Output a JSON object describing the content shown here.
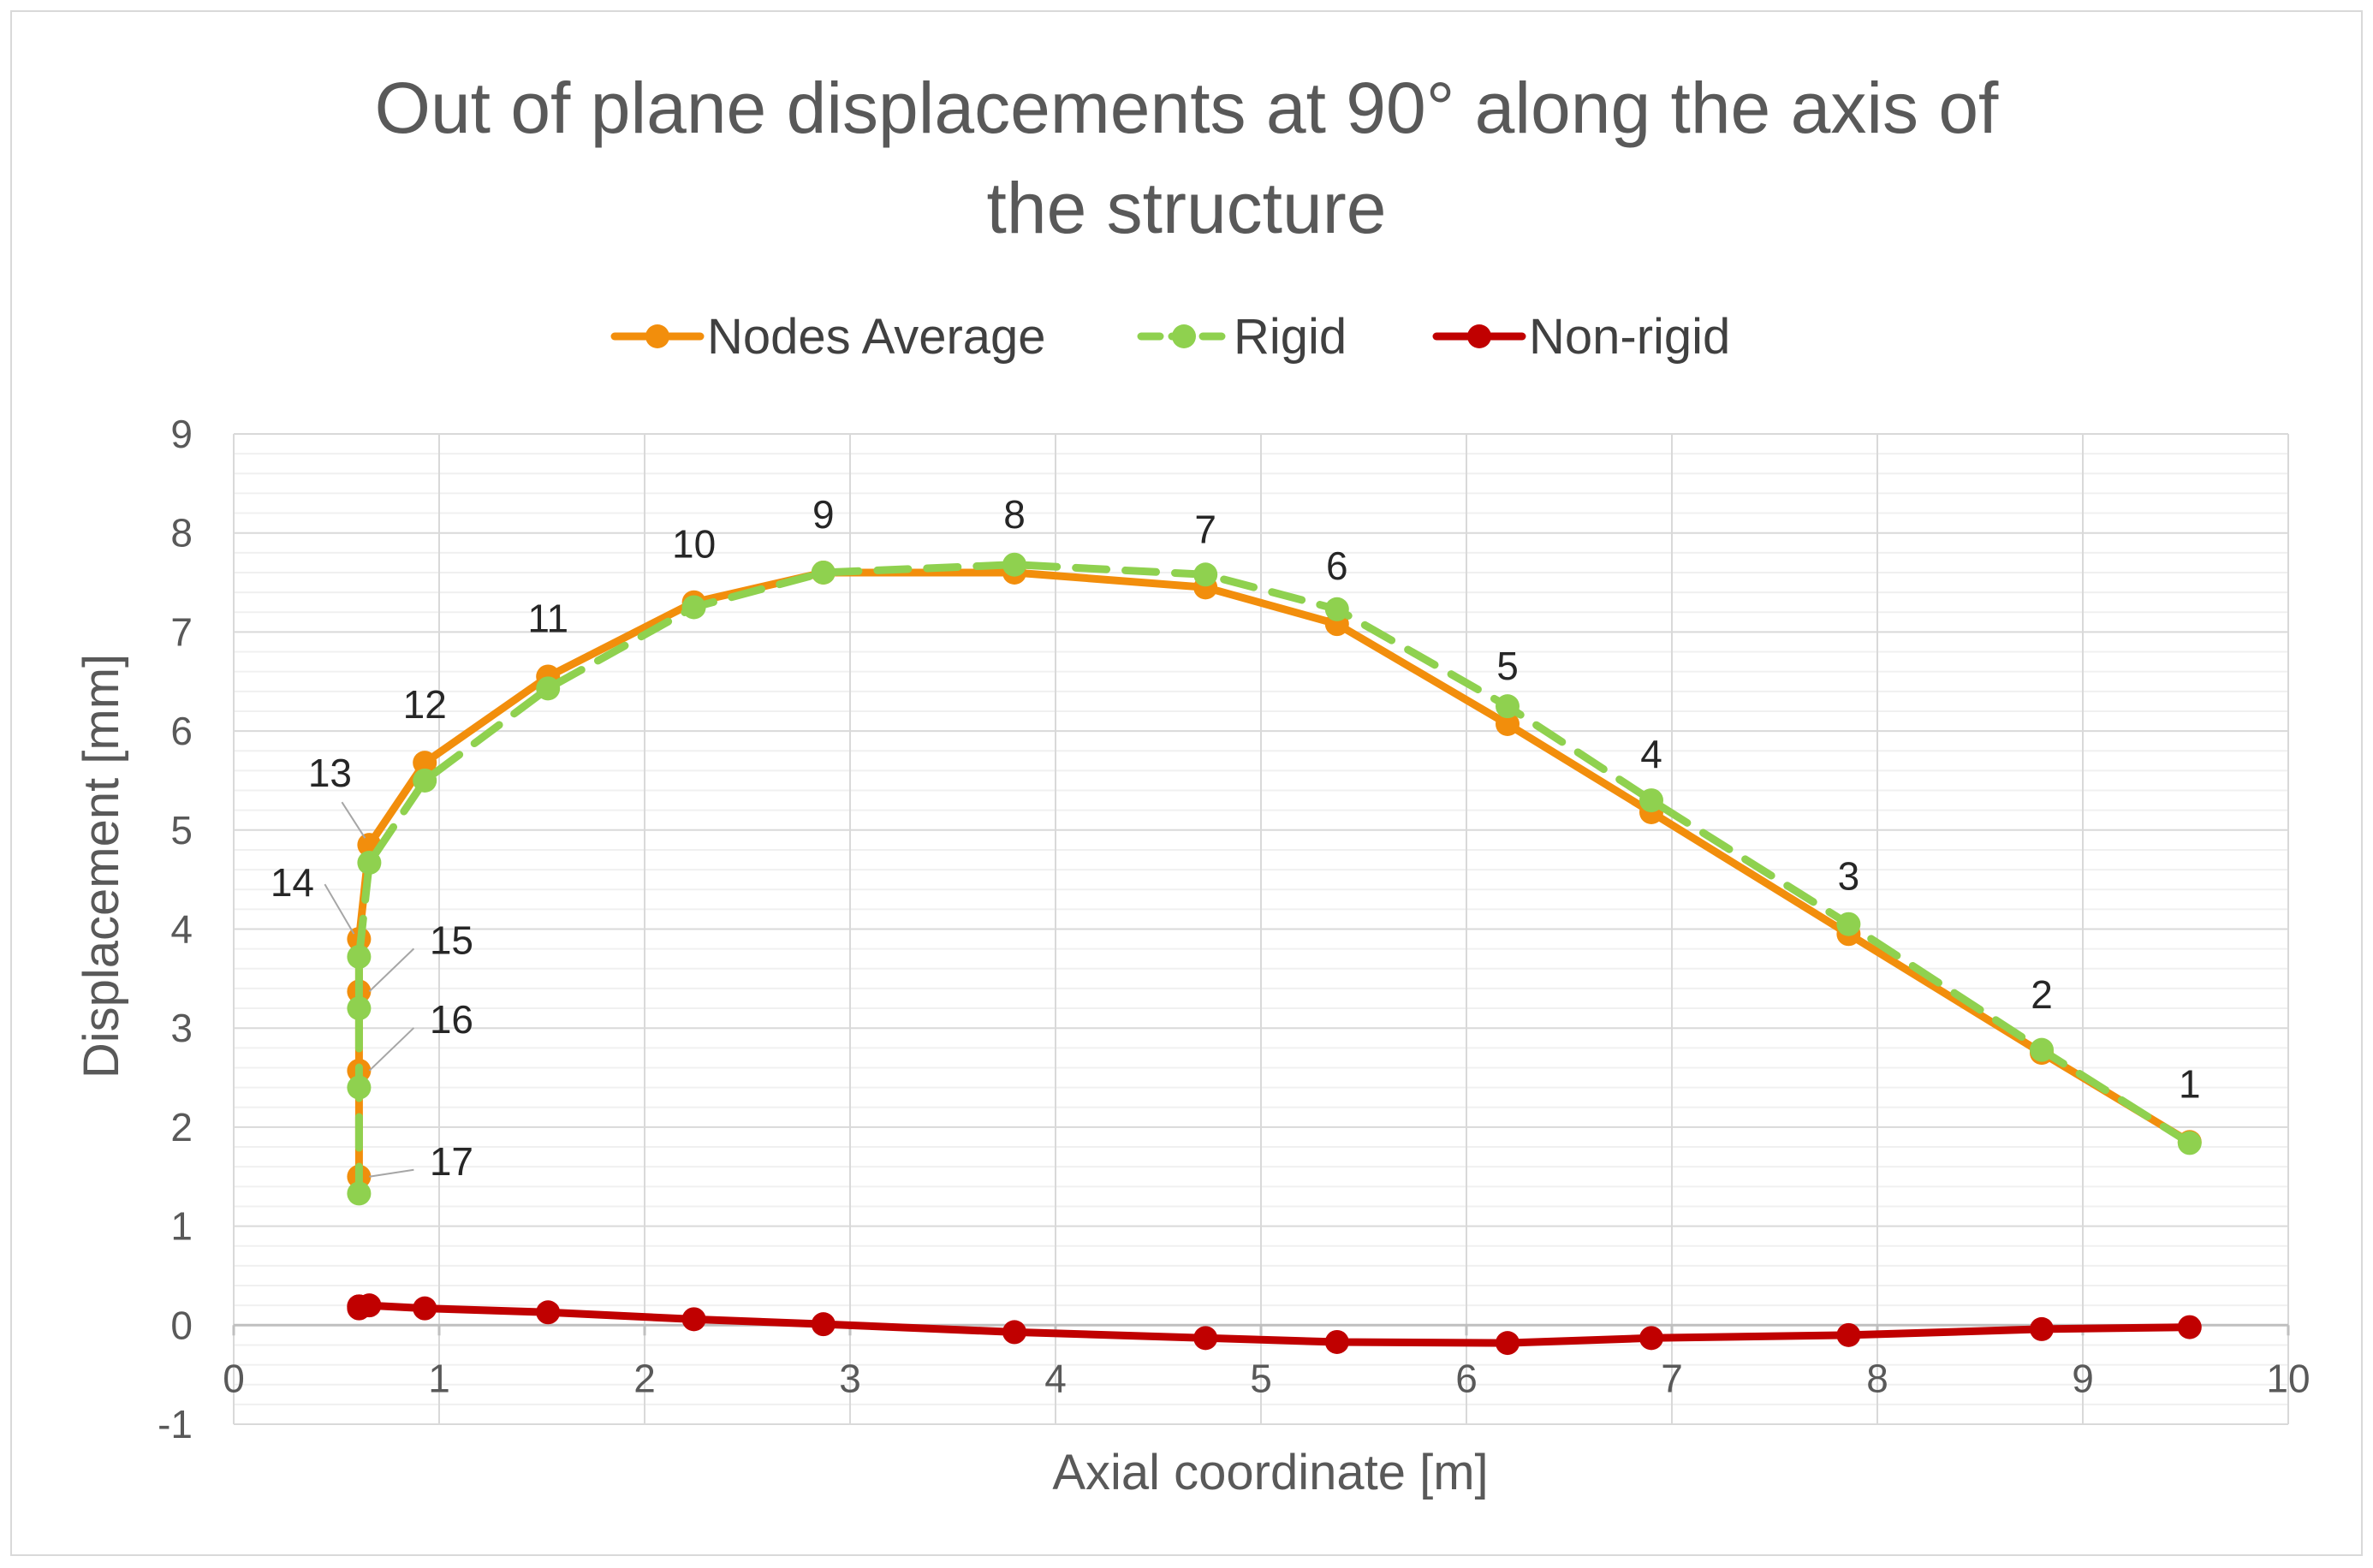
{
  "chart_data": {
    "type": "line",
    "title_lines": [
      "Out of plane displacements at 90° along the axis of",
      "the structure"
    ],
    "xlabel": "Axial coordinate [m]",
    "ylabel": "Displacement [mm]",
    "xlim": [
      0,
      10
    ],
    "ylim": [
      -1,
      9
    ],
    "x_ticks": [
      "0",
      "1",
      "2",
      "3",
      "4",
      "5",
      "6",
      "7",
      "8",
      "9",
      "10"
    ],
    "y_ticks": [
      "-1",
      "0",
      "1",
      "2",
      "3",
      "4",
      "5",
      "6",
      "7",
      "8",
      "9"
    ],
    "grid": true,
    "legend_position": "top",
    "series": [
      {
        "name": "Nodes Average",
        "color": "#f28e0c",
        "dash": false,
        "points": [
          [
            9.52,
            1.85
          ],
          [
            8.8,
            2.75
          ],
          [
            7.86,
            3.95
          ],
          [
            6.9,
            5.18
          ],
          [
            6.2,
            6.07
          ],
          [
            5.37,
            7.08
          ],
          [
            4.73,
            7.45
          ],
          [
            3.8,
            7.6
          ],
          [
            2.87,
            7.6
          ],
          [
            2.24,
            7.3
          ],
          [
            1.53,
            6.55
          ],
          [
            0.93,
            5.68
          ],
          [
            0.66,
            4.85
          ],
          [
            0.61,
            3.9
          ],
          [
            0.61,
            3.37
          ],
          [
            0.61,
            2.57
          ],
          [
            0.61,
            1.5
          ]
        ]
      },
      {
        "name": "Rigid",
        "color": "#8fd14f",
        "dash": true,
        "points": [
          [
            9.52,
            1.84
          ],
          [
            8.8,
            2.78
          ],
          [
            7.86,
            4.05
          ],
          [
            6.9,
            5.3
          ],
          [
            6.2,
            6.25
          ],
          [
            5.37,
            7.23
          ],
          [
            4.73,
            7.58
          ],
          [
            3.8,
            7.68
          ],
          [
            2.87,
            7.6
          ],
          [
            2.24,
            7.25
          ],
          [
            1.53,
            6.43
          ],
          [
            0.93,
            5.5
          ],
          [
            0.66,
            4.67
          ],
          [
            0.61,
            3.72
          ],
          [
            0.61,
            3.2
          ],
          [
            0.61,
            2.4
          ],
          [
            0.61,
            1.33
          ]
        ]
      },
      {
        "name": "Non-rigid",
        "color": "#c00000",
        "dash": false,
        "points": [
          [
            9.52,
            -0.02
          ],
          [
            8.8,
            -0.04
          ],
          [
            7.86,
            -0.1
          ],
          [
            6.9,
            -0.13
          ],
          [
            6.2,
            -0.18
          ],
          [
            5.37,
            -0.17
          ],
          [
            4.73,
            -0.13
          ],
          [
            3.8,
            -0.07
          ],
          [
            2.87,
            0.01
          ],
          [
            2.24,
            0.06
          ],
          [
            1.53,
            0.13
          ],
          [
            0.93,
            0.17
          ],
          [
            0.66,
            0.2
          ],
          [
            0.61,
            0.19
          ],
          [
            0.61,
            0.19
          ],
          [
            0.61,
            0.18
          ],
          [
            0.61,
            0.17
          ]
        ]
      }
    ],
    "node_labels": [
      "1",
      "2",
      "3",
      "4",
      "5",
      "6",
      "7",
      "8",
      "9",
      "10",
      "11",
      "12",
      "13",
      "14",
      "15",
      "16",
      "17"
    ]
  }
}
